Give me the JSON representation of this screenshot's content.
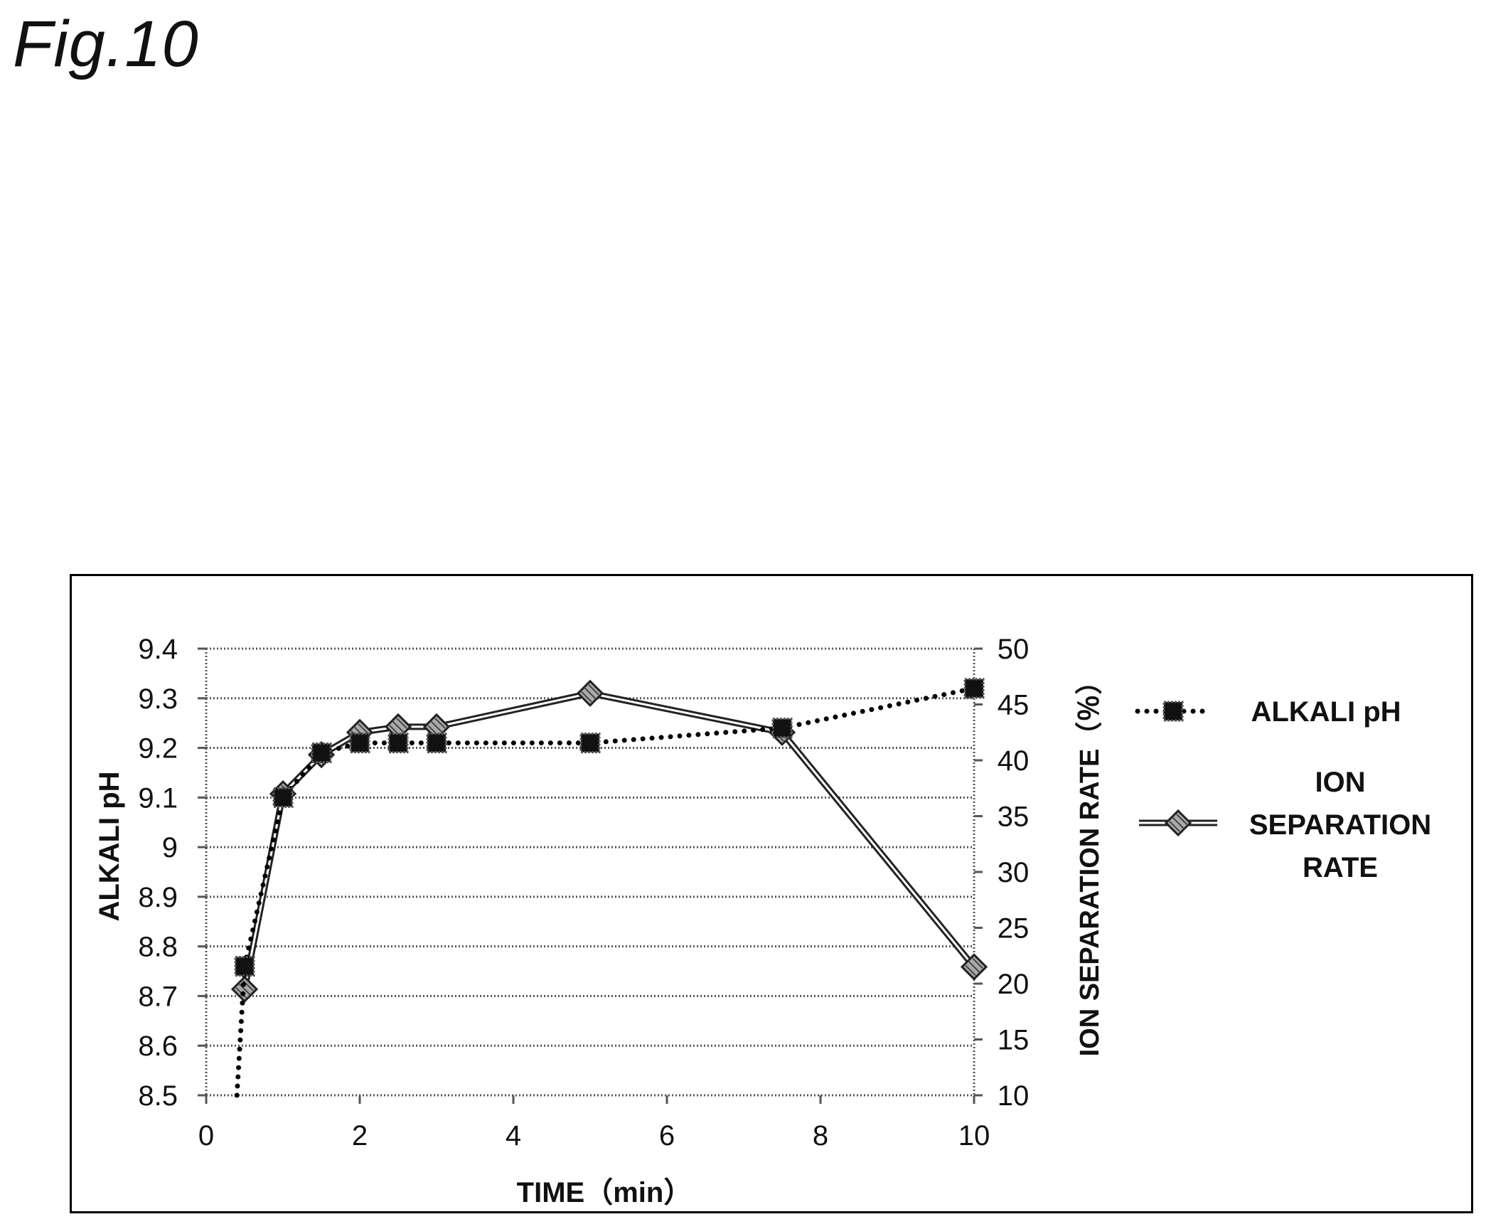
{
  "figure_label": "Fig.10",
  "chart_data": {
    "type": "line",
    "title": "",
    "xlabel": "TIME（min）",
    "ylabel_left": "ALKALI pH",
    "ylabel_right": "ION SEPARATION RATE（％）",
    "xlim": [
      0,
      10
    ],
    "ylim_left": [
      8.5,
      9.4
    ],
    "ylim_right": [
      10,
      50
    ],
    "x_ticks": [
      "0",
      "2",
      "4",
      "6",
      "8",
      "10"
    ],
    "y_left_ticks": [
      "8.5",
      "8.6",
      "8.7",
      "8.8",
      "8.9",
      "9",
      "9.1",
      "9.2",
      "9.3",
      "9.4"
    ],
    "y_right_ticks": [
      "10",
      "15",
      "20",
      "25",
      "30",
      "35",
      "40",
      "45",
      "50"
    ],
    "grid": "horizontal dotted",
    "legend_position": "right",
    "series": [
      {
        "name": "ALKALI pH",
        "axis": "left",
        "marker": "square",
        "line_style": "dotted",
        "color": "#000000",
        "x": [
          0.4,
          0.5,
          1,
          1.5,
          2,
          2.5,
          3,
          5,
          7.5,
          10
        ],
        "y": [
          8.5,
          8.76,
          9.1,
          9.19,
          9.21,
          9.21,
          9.21,
          9.21,
          9.24,
          9.32
        ],
        "marker_at": [
          false,
          true,
          true,
          true,
          true,
          true,
          true,
          true,
          true,
          true
        ]
      },
      {
        "name": "ION SEPARATION RATE",
        "axis": "right",
        "marker": "diamond",
        "line_style": "double",
        "color": "#222222",
        "x": [
          0.5,
          1,
          1.5,
          2,
          2.5,
          3,
          5,
          7.5,
          10
        ],
        "y": [
          19.5,
          37,
          40.5,
          42.5,
          43,
          43,
          46,
          42.5,
          21.5
        ]
      }
    ]
  }
}
